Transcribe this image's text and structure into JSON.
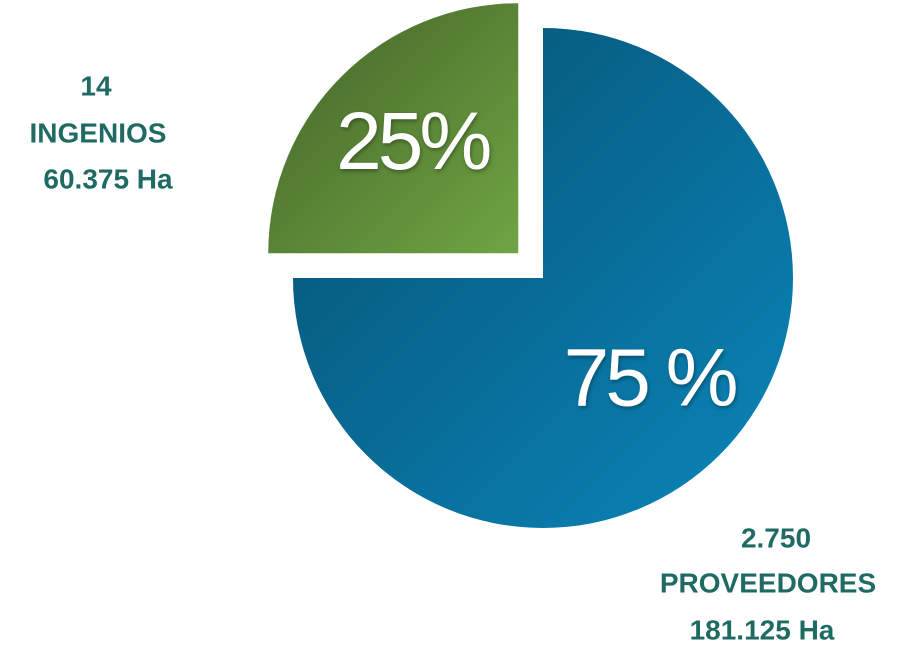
{
  "chart_data": {
    "type": "pie",
    "categories": [
      "PROVEEDORES",
      "INGENIOS"
    ],
    "values": [
      75,
      25
    ],
    "value_labels": [
      "75 %",
      "25%"
    ],
    "colors": [
      "#0a86bb",
      "#6fa443"
    ],
    "annotations": [
      [
        "2.750",
        "PROVEEDORES",
        "181.125 Ha"
      ],
      [
        "14",
        "INGENIOS",
        "60.375 Ha"
      ]
    ]
  }
}
